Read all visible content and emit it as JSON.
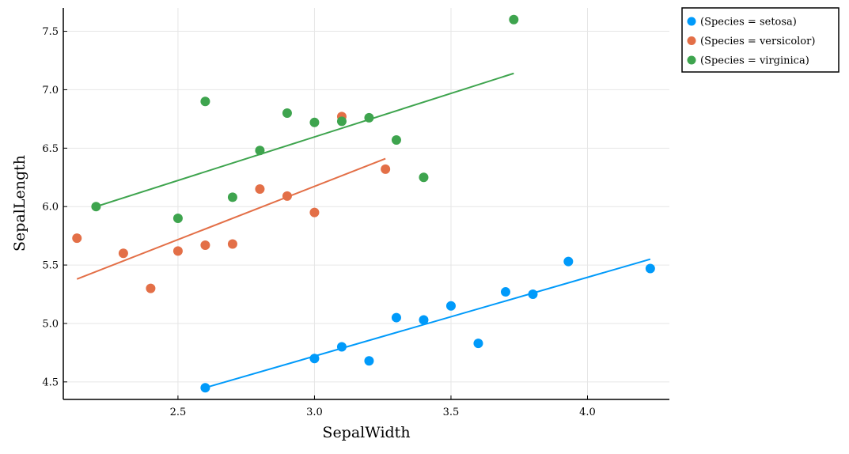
{
  "chart_data": {
    "type": "scatter",
    "title": "",
    "xlabel": "SepalWidth",
    "ylabel": "SepalLength",
    "xlim": [
      2.08,
      4.3
    ],
    "ylim": [
      4.35,
      7.7
    ],
    "xticks": [
      "2.5",
      "3.0",
      "3.5",
      "4.0"
    ],
    "yticks": [
      "4.5",
      "5.0",
      "5.5",
      "6.0",
      "6.5",
      "7.0",
      "7.5"
    ],
    "grid": true,
    "legend": "outside-top-right",
    "series": [
      {
        "name": "(Species = setosa)",
        "color": "#009AFA",
        "points": [
          [
            2.6,
            4.45
          ],
          [
            3.0,
            4.7
          ],
          [
            3.1,
            4.8
          ],
          [
            3.2,
            4.68
          ],
          [
            3.3,
            5.05
          ],
          [
            3.4,
            5.03
          ],
          [
            3.5,
            5.15
          ],
          [
            3.6,
            4.83
          ],
          [
            3.7,
            5.27
          ],
          [
            3.8,
            5.25
          ],
          [
            3.93,
            5.53
          ],
          [
            4.23,
            5.47
          ]
        ],
        "fit": [
          [
            2.6,
            4.45
          ],
          [
            4.23,
            5.55
          ]
        ]
      },
      {
        "name": "(Species = versicolor)",
        "color": "#E36F47",
        "points": [
          [
            2.13,
            5.73
          ],
          [
            2.3,
            5.6
          ],
          [
            2.4,
            5.3
          ],
          [
            2.5,
            5.62
          ],
          [
            2.6,
            5.67
          ],
          [
            2.7,
            5.68
          ],
          [
            2.8,
            6.15
          ],
          [
            2.9,
            6.09
          ],
          [
            3.0,
            5.95
          ],
          [
            3.1,
            6.77
          ],
          [
            3.26,
            6.32
          ]
        ],
        "fit": [
          [
            2.13,
            5.38
          ],
          [
            3.26,
            6.41
          ]
        ]
      },
      {
        "name": "(Species = virginica)",
        "color": "#3EA44E",
        "points": [
          [
            2.2,
            6.0
          ],
          [
            2.5,
            5.9
          ],
          [
            2.6,
            6.9
          ],
          [
            2.7,
            6.08
          ],
          [
            2.8,
            6.48
          ],
          [
            2.9,
            6.8
          ],
          [
            3.0,
            6.72
          ],
          [
            3.1,
            6.73
          ],
          [
            3.2,
            6.76
          ],
          [
            3.3,
            6.57
          ],
          [
            3.4,
            6.25
          ],
          [
            3.73,
            7.6
          ]
        ],
        "fit": [
          [
            2.2,
            6.0
          ],
          [
            3.73,
            7.14
          ]
        ]
      }
    ]
  }
}
